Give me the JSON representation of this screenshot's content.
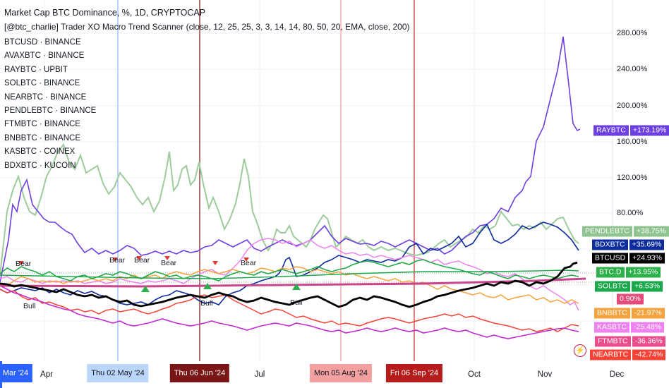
{
  "header": {
    "title": "Market Cap BTC Dominance, %, 1D, CRYPTOCAP",
    "subtitle": "[@btc_charlie] Trader XO Macro Trend Scanner (close, 12, 25, 25, 3, 3, 14, 14, 80, 50, 20, EMA, close, 200)"
  },
  "legend": [
    "BTCUSD · BINANCE",
    "AVAXBTC · BINANCE",
    "RAYBTC · UPBIT",
    "SOLBTC · BINANCE",
    "NEARBTC · BINANCE",
    "PENDLEBTC · BINANCE",
    "FTMBTC · BINANCE",
    "BNBBTC · BINANCE",
    "KASBTC · COINEX",
    "BDXBTC · KUCOIN"
  ],
  "y_axis": [
    "280.00%",
    "240.00%",
    "200.00%",
    "160.00%",
    "120.00%",
    "80.00%"
  ],
  "x_axis": {
    "labels": [
      "Apr",
      "Jul",
      "Oct",
      "Nov",
      "Dec"
    ],
    "start": "Mar '24",
    "highlights": [
      "Thu 02 May '24",
      "Thu 06 Jun '24",
      "Mon 05 Aug '24",
      "Fri 06 Sep '24"
    ]
  },
  "price_tags": [
    {
      "name": "RAYBTC",
      "value": "+173.19%",
      "color": "#6c3fe0"
    },
    {
      "name": "PENDLEBTC",
      "value": "+38.75%",
      "color": "#8fc38f"
    },
    {
      "name": "BDXBTC",
      "value": "+35.69%",
      "color": "#0d2c9e"
    },
    {
      "name": "BTCUSD",
      "value": "+24.93%",
      "color": "#000000"
    },
    {
      "name": "BTC.D",
      "value": "+13.95%",
      "color": "#2bb04a"
    },
    {
      "name": "SOLBTC",
      "value": "+6.53%",
      "color": "#1aa84a"
    },
    {
      "name": "",
      "value": "0.90%",
      "color": "#e54b7a"
    },
    {
      "name": "BNBBTC",
      "value": "-21.97%",
      "color": "#f5a23c"
    },
    {
      "name": "KASBTC",
      "value": "-25.48%",
      "color": "#ee82ee"
    },
    {
      "name": "FTMBTC",
      "value": "-36.36%",
      "color": "#e94d8c"
    },
    {
      "name": "NEARBTC",
      "value": "-42.74%",
      "color": "#f44336"
    }
  ],
  "signals": {
    "bear": "Bear",
    "bull": "Bull"
  },
  "icons": {
    "alert": "lightning-icon"
  }
}
